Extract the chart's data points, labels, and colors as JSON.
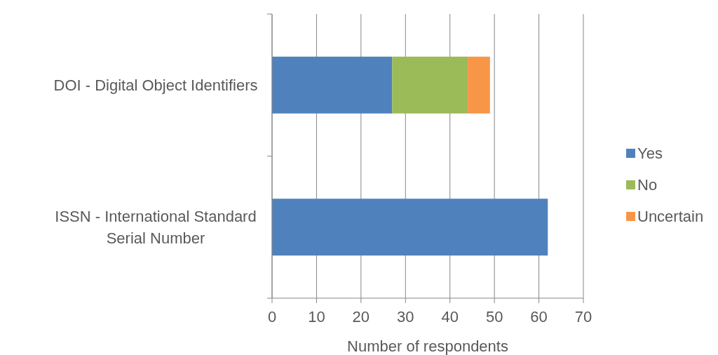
{
  "chart_data": {
    "type": "bar",
    "orientation": "horizontal",
    "stacked": true,
    "categories": [
      "DOI - Digital Object Identifiers",
      "ISSN - International Standard Serial Number"
    ],
    "series": [
      {
        "name": "Yes",
        "color": "#4f81bd",
        "values": [
          27,
          62
        ]
      },
      {
        "name": "No",
        "color": "#9bbb59",
        "values": [
          17,
          null
        ]
      },
      {
        "name": "Uncertain",
        "color": "#f79646",
        "values": [
          5,
          null
        ]
      }
    ],
    "xlim": [
      0,
      70
    ],
    "xticks": [
      0,
      10,
      20,
      30,
      40,
      50,
      60,
      70
    ],
    "xlabel": "Number of respondents",
    "grid": "x",
    "legend": "right"
  }
}
